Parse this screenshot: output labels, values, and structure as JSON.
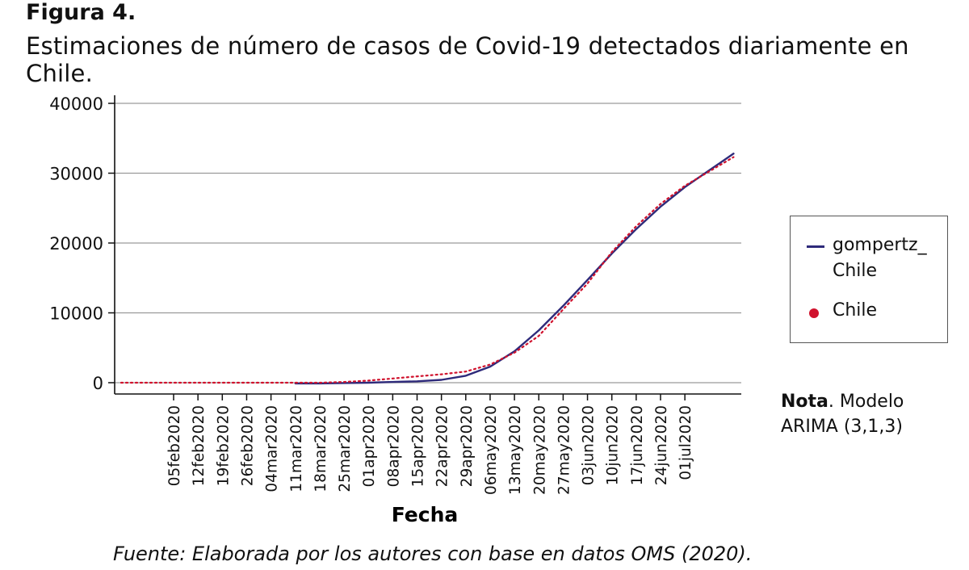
{
  "figure_label": "Figura 4.",
  "figure_title": "Estimaciones de número de casos de Covid-19 detectados diariamente en Chile.",
  "legend": {
    "gompertz_label": "gompertz_ Chile",
    "chile_label": "Chile"
  },
  "note": {
    "bold": "Nota",
    "text": ". Modelo ARIMA (3,1,3)"
  },
  "source": "Fuente: Elaborada por los autores con base en datos OMS (2020).",
  "chart_data": {
    "type": "line",
    "xlabel": "Fecha",
    "ylabel": "",
    "ylim": [
      0,
      40000
    ],
    "yticks": [
      0,
      10000,
      20000,
      30000,
      40000
    ],
    "grid": true,
    "legend_position": "right",
    "xticks": [
      "05feb2020",
      "12feb2020",
      "19feb2020",
      "26feb2020",
      "04mar2020",
      "11mar2020",
      "18mar2020",
      "25mar2020",
      "01apr2020",
      "08apr2020",
      "15apr2020",
      "22apr2020",
      "29apr2020",
      "06may2020",
      "13may2020",
      "20may2020",
      "27may2020",
      "03jun2020",
      "10jun2020",
      "17jun2020",
      "24jun2020",
      "01jul2020"
    ],
    "x": [
      "2020-01-20",
      "2020-01-29",
      "2020-02-05",
      "2020-02-12",
      "2020-02-19",
      "2020-02-26",
      "2020-03-04",
      "2020-03-11",
      "2020-03-18",
      "2020-03-25",
      "2020-04-01",
      "2020-04-08",
      "2020-04-15",
      "2020-04-22",
      "2020-04-29",
      "2020-05-06",
      "2020-05-13",
      "2020-05-20",
      "2020-05-27",
      "2020-06-03",
      "2020-06-10",
      "2020-06-17",
      "2020-06-24",
      "2020-07-01",
      "2020-07-15"
    ],
    "series": [
      {
        "name": "gompertz_ Chile",
        "color": "#2e2a7a",
        "style": "solid",
        "x": [
          "2020-03-11",
          "2020-03-18",
          "2020-03-25",
          "2020-04-01",
          "2020-04-08",
          "2020-04-15",
          "2020-04-22",
          "2020-04-29",
          "2020-05-06",
          "2020-05-13",
          "2020-05-20",
          "2020-05-27",
          "2020-06-03",
          "2020-06-10",
          "2020-06-17",
          "2020-06-24",
          "2020-07-01",
          "2020-07-15"
        ],
        "values": [
          -100,
          -100,
          -50,
          0,
          100,
          200,
          400,
          1000,
          2300,
          4500,
          7500,
          11000,
          14700,
          18500,
          22000,
          25200,
          28000,
          32800
        ]
      },
      {
        "name": "Chile",
        "color": "#d0122d",
        "style": "dotted",
        "x": [
          "2020-01-20",
          "2020-01-29",
          "2020-02-05",
          "2020-02-12",
          "2020-02-19",
          "2020-02-26",
          "2020-03-04",
          "2020-03-11",
          "2020-03-18",
          "2020-03-25",
          "2020-04-01",
          "2020-04-08",
          "2020-04-15",
          "2020-04-22",
          "2020-04-29",
          "2020-05-06",
          "2020-05-13",
          "2020-05-20",
          "2020-05-27",
          "2020-06-03",
          "2020-06-10",
          "2020-06-17",
          "2020-06-24",
          "2020-07-01",
          "2020-07-15"
        ],
        "values": [
          0,
          0,
          0,
          0,
          0,
          0,
          0,
          0,
          0,
          100,
          300,
          600,
          900,
          1200,
          1600,
          2600,
          4300,
          6700,
          10500,
          14200,
          18700,
          22400,
          25600,
          28200,
          32300
        ]
      }
    ]
  }
}
